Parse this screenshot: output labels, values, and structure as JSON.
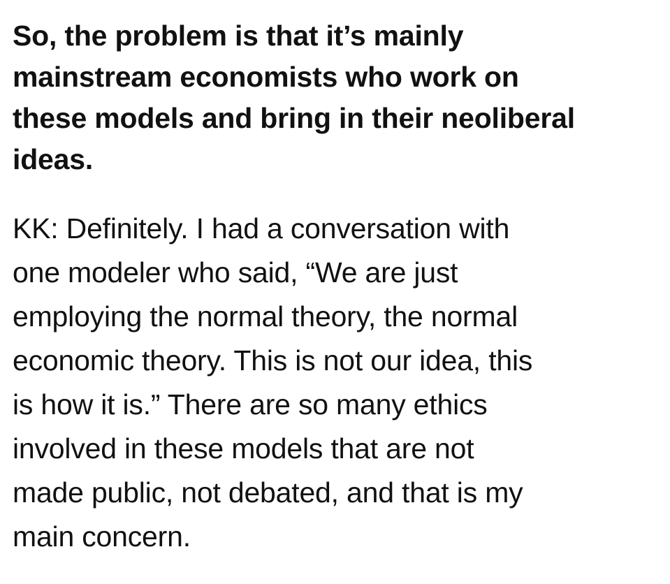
{
  "question": {
    "lines": [
      "So, the problem is that it’s mainly",
      "mainstream economists who work on",
      "these models and bring in their neoliberal",
      "ideas."
    ]
  },
  "answer": {
    "lines": [
      "KK: Definitely. I had a conversation with",
      "one modeler who said, “We are just",
      "employing the normal theory, the normal",
      "economic theory. This is not our idea, this",
      "is how it is.” There are so many ethics",
      "involved in these models that are not",
      "made public, not debated, and that is my",
      "main concern."
    ]
  }
}
